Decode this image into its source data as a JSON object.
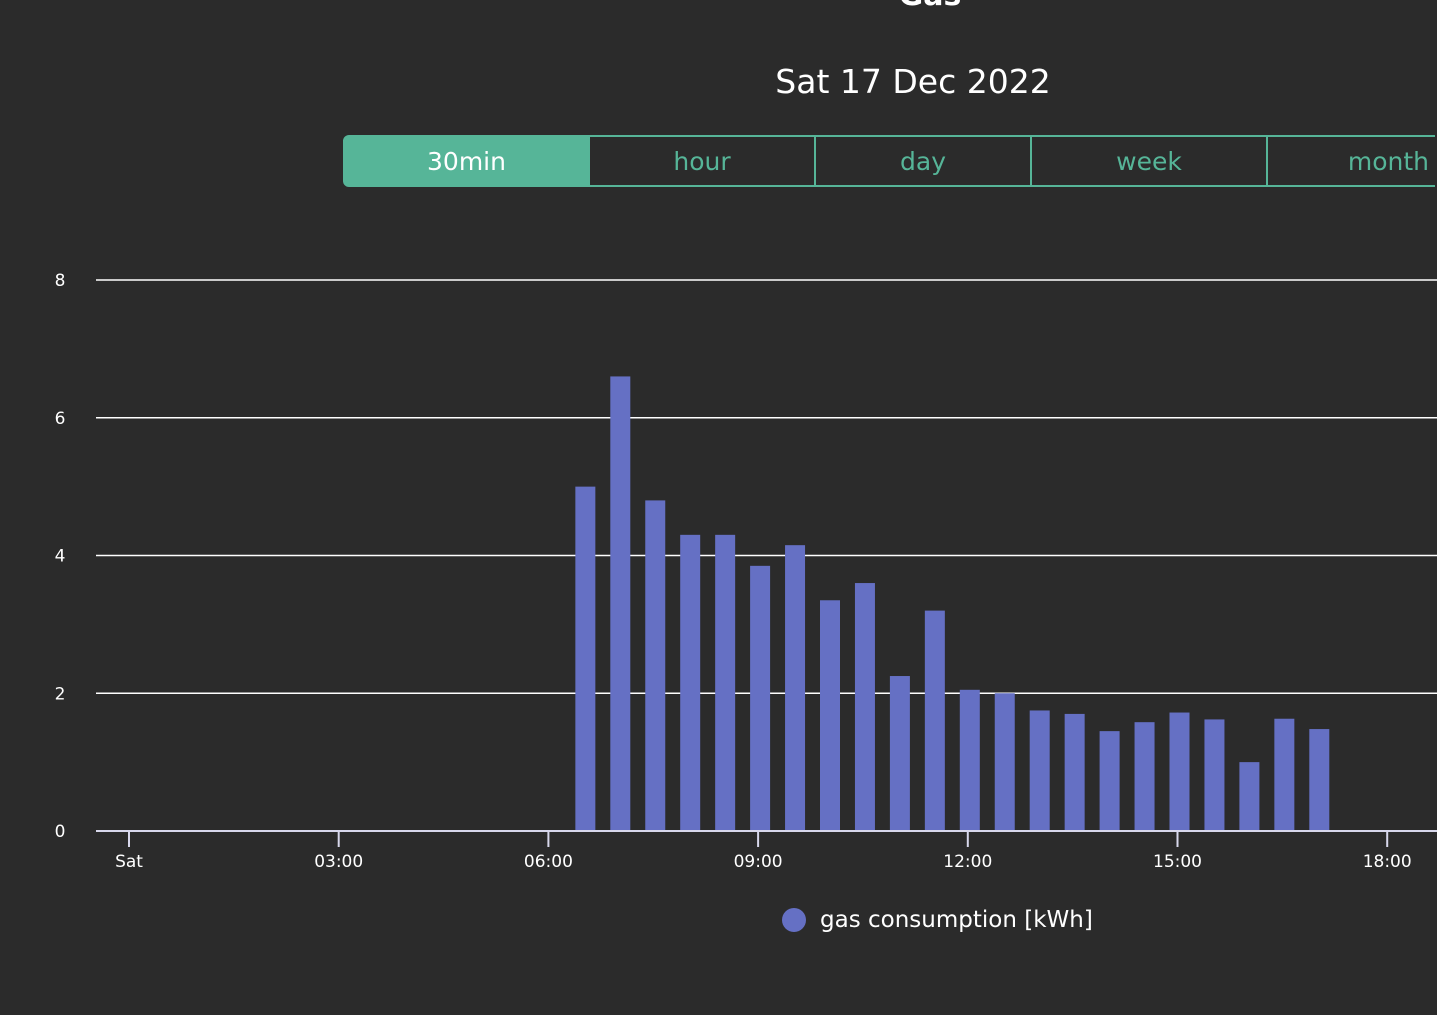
{
  "header": {
    "title": "Gas",
    "date": "Sat 17 Dec 2022"
  },
  "range_tabs": [
    {
      "label": "30min",
      "active": true
    },
    {
      "label": "hour",
      "active": false
    },
    {
      "label": "day",
      "active": false
    },
    {
      "label": "week",
      "active": false
    },
    {
      "label": "month",
      "active": false
    }
  ],
  "colors": {
    "accent": "#56b598",
    "bar": "#6570c4",
    "background": "#2b2b2b",
    "grid": "#ffffff"
  },
  "chart_data": {
    "type": "bar",
    "x_axis": {
      "min": 0,
      "max": 19.5,
      "unit": "hours since midnight",
      "ticks": [
        {
          "value": 0,
          "label": "Sat"
        },
        {
          "value": 3,
          "label": "03:00"
        },
        {
          "value": 6,
          "label": "06:00"
        },
        {
          "value": 9,
          "label": "09:00"
        },
        {
          "value": 12,
          "label": "12:00"
        },
        {
          "value": 15,
          "label": "15:00"
        },
        {
          "value": 18,
          "label": "18:00"
        }
      ]
    },
    "y_axis": {
      "min": 0,
      "max": 8,
      "ticks": [
        0,
        2,
        4,
        6,
        8
      ]
    },
    "grid": true,
    "legend": "bottom-center",
    "series": [
      {
        "name": "gas consumption [kWh]",
        "points": [
          {
            "x": 6.5,
            "y": 5.0
          },
          {
            "x": 7.0,
            "y": 6.6
          },
          {
            "x": 7.5,
            "y": 4.8
          },
          {
            "x": 8.0,
            "y": 4.3
          },
          {
            "x": 8.5,
            "y": 4.3
          },
          {
            "x": 9.0,
            "y": 3.85
          },
          {
            "x": 9.5,
            "y": 4.15
          },
          {
            "x": 10.0,
            "y": 3.35
          },
          {
            "x": 10.5,
            "y": 3.6
          },
          {
            "x": 11.0,
            "y": 2.25
          },
          {
            "x": 11.5,
            "y": 3.2
          },
          {
            "x": 12.0,
            "y": 2.05
          },
          {
            "x": 12.5,
            "y": 2.0
          },
          {
            "x": 13.0,
            "y": 1.75
          },
          {
            "x": 13.5,
            "y": 1.7
          },
          {
            "x": 14.0,
            "y": 1.45
          },
          {
            "x": 14.5,
            "y": 1.58
          },
          {
            "x": 15.0,
            "y": 1.72
          },
          {
            "x": 15.5,
            "y": 1.62
          },
          {
            "x": 16.0,
            "y": 1.0
          },
          {
            "x": 16.5,
            "y": 1.63
          },
          {
            "x": 17.0,
            "y": 1.48
          }
        ]
      }
    ]
  }
}
